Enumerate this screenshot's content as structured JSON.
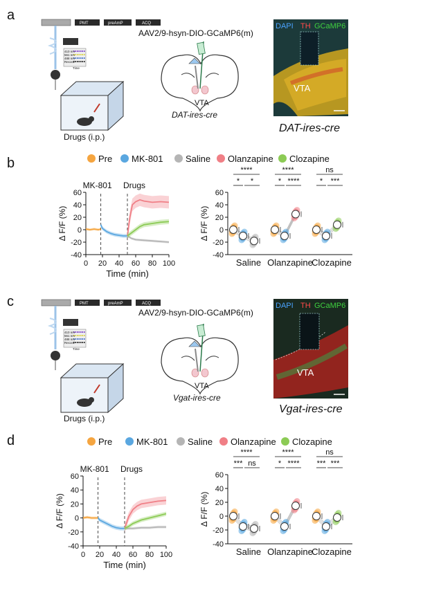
{
  "panels": {
    "a": {
      "label": "a",
      "virus": "AAV2/9-hsyn-DIO-GCaMP6(m)",
      "instrument_boxes": [
        "PMT",
        "preAmP",
        "ACQ"
      ],
      "drugs_label": "Drugs (i.p.)",
      "region_label": "VTA",
      "mouse_line_brain": "DAT-ires-cre",
      "mouse_line_image": "DAT-ires-cre",
      "stain_labels": [
        "DAPI",
        "TH",
        "GCaMP6"
      ],
      "stain_colors": [
        "#4aa3ff",
        "#ff4a4a",
        "#3fd13f"
      ],
      "micro_region": "VTA",
      "wavelengths": [
        "410 nm",
        "561 nm",
        "488 nm",
        "Record"
      ],
      "time_label": "Time"
    },
    "c": {
      "label": "c",
      "virus": "AAV2/9-hsyn-DIO-GCaMP6(m)",
      "instrument_boxes": [
        "PMT",
        "preAmP",
        "ACQ"
      ],
      "drugs_label": "Drugs (i.p.)",
      "region_label": "VTA",
      "mouse_line_brain": "Vgat-ires-cre",
      "mouse_line_image": "Vgat-ires-cre",
      "stain_labels": [
        "DAPI",
        "TH",
        "GCaMP6"
      ],
      "stain_colors": [
        "#4aa3ff",
        "#ff4a4a",
        "#3fd13f"
      ],
      "micro_region": "VTA",
      "wavelengths": [
        "410 nm",
        "561 nm",
        "488 nm",
        "Record"
      ],
      "time_label": "Time"
    },
    "b": {
      "label": "b"
    },
    "d": {
      "label": "d"
    }
  },
  "legend_items": [
    {
      "name": "Pre",
      "color": "#f5a540"
    },
    {
      "name": "MK-801",
      "color": "#5aa7e0"
    },
    {
      "name": "Saline",
      "color": "#b5b5b5"
    },
    {
      "name": "Olanzapine",
      "color": "#f07f86"
    },
    {
      "name": "Clozapine",
      "color": "#8ccb55"
    }
  ],
  "chart_data": [
    {
      "panel": "b",
      "type": "line",
      "xlabel": "Time (min)",
      "ylabel": "Δ F/F (%)",
      "xlim": [
        0,
        100
      ],
      "ylim": [
        -40,
        60
      ],
      "xticks": [
        0,
        20,
        40,
        60,
        80,
        100
      ],
      "yticks": [
        -40,
        -20,
        0,
        20,
        40,
        60
      ],
      "annotations": [
        {
          "x": 18,
          "text": "MK-801"
        },
        {
          "x": 50,
          "text": "Drugs"
        }
      ],
      "series": [
        {
          "name": "Pre",
          "color": "#f5a540",
          "x": [
            0,
            5,
            10,
            15,
            18
          ],
          "y": [
            1,
            0,
            1,
            0,
            1
          ],
          "err": 2
        },
        {
          "name": "MK-801",
          "color": "#5aa7e0",
          "x": [
            18,
            20,
            25,
            30,
            35,
            40,
            45,
            50
          ],
          "y": [
            8,
            2,
            -3,
            -6,
            -8,
            -9,
            -10,
            -10
          ],
          "err": 3
        },
        {
          "name": "Saline",
          "color": "#b5b5b5",
          "x": [
            50,
            55,
            60,
            70,
            80,
            90,
            100
          ],
          "y": [
            -10,
            -14,
            -16,
            -17,
            -18,
            -19,
            -20
          ],
          "err": 2
        },
        {
          "name": "Olanzapine",
          "color": "#f07f86",
          "x": [
            50,
            53,
            56,
            60,
            65,
            70,
            80,
            90,
            100
          ],
          "y": [
            -10,
            20,
            40,
            45,
            48,
            46,
            44,
            45,
            44
          ],
          "err": 10
        },
        {
          "name": "Clozapine",
          "color": "#8ccb55",
          "x": [
            50,
            55,
            60,
            65,
            70,
            80,
            90,
            100
          ],
          "y": [
            -10,
            -5,
            0,
            5,
            8,
            10,
            12,
            13
          ],
          "err": 4
        }
      ]
    },
    {
      "panel": "b",
      "type": "scatter",
      "ylabel": "Δ F/F (%)",
      "ylim": [
        -40,
        60
      ],
      "yticks": [
        -40,
        -20,
        0,
        20,
        40,
        60
      ],
      "categories": [
        "Saline",
        "Olanzapine",
        "Clozapine"
      ],
      "groups": [
        {
          "category": "Saline",
          "means": [
            0,
            -10,
            -18
          ],
          "drug_color": "#b5b5b5"
        },
        {
          "category": "Olanzapine",
          "means": [
            0,
            -10,
            25
          ],
          "drug_color": "#f07f86"
        },
        {
          "category": "Clozapine",
          "means": [
            0,
            -10,
            8
          ],
          "drug_color": "#8ccb55"
        }
      ],
      "significance": [
        {
          "category": "Saline",
          "pre_mk": "*",
          "mk_drug": "*",
          "pre_drug": "****"
        },
        {
          "category": "Olanzapine",
          "pre_mk": "*",
          "mk_drug": "****",
          "pre_drug": "****"
        },
        {
          "category": "Clozapine",
          "pre_mk": "*",
          "mk_drug": "***",
          "pre_drug": "ns"
        }
      ]
    },
    {
      "panel": "d",
      "type": "line",
      "xlabel": "Time (min)",
      "ylabel": "Δ F/F (%)",
      "xlim": [
        0,
        100
      ],
      "ylim": [
        -40,
        60
      ],
      "xticks": [
        0,
        20,
        40,
        60,
        80,
        100
      ],
      "yticks": [
        -40,
        -20,
        0,
        20,
        40,
        60
      ],
      "annotations": [
        {
          "x": 18,
          "text": "MK-801"
        },
        {
          "x": 50,
          "text": "Drugs"
        }
      ],
      "series": [
        {
          "name": "Pre",
          "color": "#f5a540",
          "x": [
            0,
            5,
            10,
            15,
            18
          ],
          "y": [
            0,
            1,
            0,
            0,
            0
          ],
          "err": 2
        },
        {
          "name": "MK-801",
          "color": "#5aa7e0",
          "x": [
            18,
            20,
            25,
            30,
            35,
            40,
            45,
            50
          ],
          "y": [
            0,
            -3,
            -6,
            -9,
            -12,
            -14,
            -15,
            -15
          ],
          "err": 3
        },
        {
          "name": "Saline",
          "color": "#b5b5b5",
          "x": [
            50,
            60,
            70,
            80,
            90,
            100
          ],
          "y": [
            -15,
            -15,
            -14,
            -14,
            -13,
            -13
          ],
          "err": 2
        },
        {
          "name": "Olanzapine",
          "color": "#f07f86",
          "x": [
            50,
            55,
            60,
            65,
            70,
            80,
            90,
            100
          ],
          "y": [
            -15,
            2,
            12,
            17,
            20,
            22,
            24,
            25
          ],
          "err": 6
        },
        {
          "name": "Clozapine",
          "color": "#8ccb55",
          "x": [
            50,
            55,
            60,
            70,
            80,
            90,
            100
          ],
          "y": [
            -15,
            -12,
            -8,
            -3,
            0,
            3,
            6
          ],
          "err": 3
        }
      ]
    },
    {
      "panel": "d",
      "type": "scatter",
      "ylabel": "Δ F/F (%)",
      "ylim": [
        -40,
        60
      ],
      "yticks": [
        -40,
        -20,
        0,
        20,
        40,
        60
      ],
      "categories": [
        "Saline",
        "Olanzapine",
        "Clozapine"
      ],
      "groups": [
        {
          "category": "Saline",
          "means": [
            0,
            -15,
            -18
          ],
          "drug_color": "#b5b5b5"
        },
        {
          "category": "Olanzapine",
          "means": [
            0,
            -15,
            15
          ],
          "drug_color": "#f07f86"
        },
        {
          "category": "Clozapine",
          "means": [
            0,
            -15,
            -2
          ],
          "drug_color": "#8ccb55"
        }
      ],
      "significance": [
        {
          "category": "Saline",
          "pre_mk": "***",
          "mk_drug": "ns",
          "pre_drug": "****"
        },
        {
          "category": "Olanzapine",
          "pre_mk": "*",
          "mk_drug": "****",
          "pre_drug": "****"
        },
        {
          "category": "Clozapine",
          "pre_mk": "***",
          "mk_drug": "***",
          "pre_drug": "ns"
        }
      ]
    }
  ]
}
